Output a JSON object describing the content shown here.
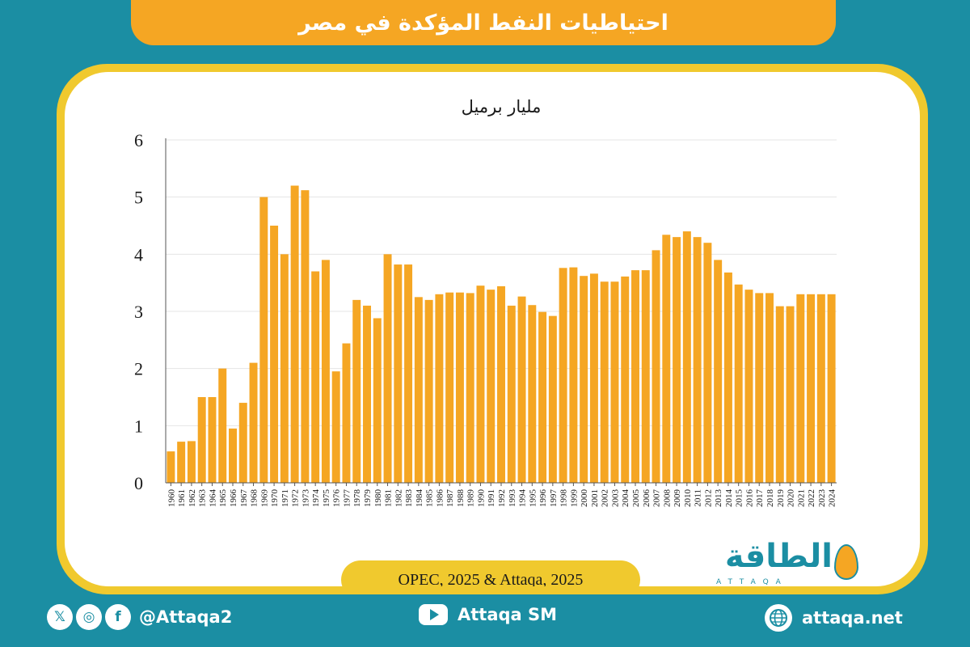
{
  "header": {
    "title": "احتياطيات النفط المؤكدة في مصر"
  },
  "chart_data": {
    "type": "bar",
    "title": "",
    "ylabel": "مليار برميل",
    "xlabel": "",
    "ylim": [
      0,
      6
    ],
    "yticks": [
      0,
      1,
      2,
      3,
      4,
      5,
      6
    ],
    "grid": true,
    "bar_color": "#f5a623",
    "categories": [
      "1960",
      "1961",
      "1962",
      "1963",
      "1964",
      "1965",
      "1966",
      "1967",
      "1968",
      "1969",
      "1970",
      "1971",
      "1972",
      "1973",
      "1974",
      "1975",
      "1976",
      "1977",
      "1978",
      "1979",
      "1980",
      "1981",
      "1982",
      "1983",
      "1984",
      "1985",
      "1986",
      "1987",
      "1988",
      "1989",
      "1990",
      "1991",
      "1992",
      "1993",
      "1994",
      "1995",
      "1996",
      "1997",
      "1998",
      "1999",
      "2000",
      "2001",
      "2002",
      "2003",
      "2004",
      "2005",
      "2006",
      "2007",
      "2008",
      "2009",
      "2010",
      "2011",
      "2012",
      "2013",
      "2014",
      "2015",
      "2016",
      "2017",
      "2018",
      "2019",
      "2020",
      "2021",
      "2022",
      "2023",
      "2024"
    ],
    "values": [
      0.55,
      0.72,
      0.73,
      1.5,
      1.5,
      2.0,
      0.95,
      1.4,
      2.1,
      5.0,
      4.5,
      4.0,
      5.2,
      5.12,
      3.7,
      3.9,
      1.95,
      2.44,
      3.2,
      3.1,
      2.88,
      4.0,
      3.82,
      3.82,
      3.25,
      3.2,
      3.3,
      3.33,
      3.33,
      3.32,
      3.45,
      3.38,
      3.44,
      3.1,
      3.26,
      3.11,
      2.99,
      2.92,
      3.76,
      3.77,
      3.62,
      3.66,
      3.52,
      3.52,
      3.61,
      3.72,
      3.72,
      4.07,
      4.34,
      4.3,
      4.4,
      4.3,
      4.2,
      3.9,
      3.68,
      3.47,
      3.38,
      3.32,
      3.32,
      3.09,
      3.09,
      3.3,
      3.3,
      3.3,
      3.3
    ]
  },
  "source": "OPEC, 2025 & Attaqa, 2025",
  "logo": {
    "arabic": "الطاقة",
    "latin": "ATTAQA"
  },
  "footer": {
    "social_handle": "@Attaqa2",
    "youtube": "Attaqa SM",
    "website": "attaqa.net"
  }
}
